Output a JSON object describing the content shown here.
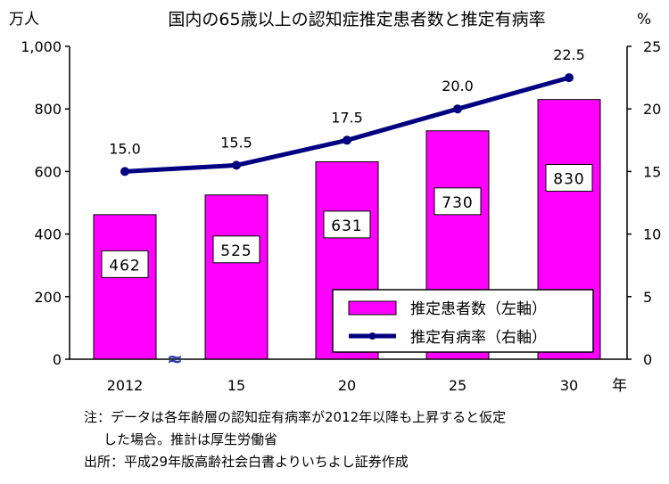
{
  "chart_data": {
    "type": "bar+line",
    "title": "国内の65歳以上の認知症推定患者数と推定有病率",
    "left_unit": "万人",
    "right_unit": "%",
    "x_unit": "年",
    "categories": [
      "2012",
      "15",
      "20",
      "25",
      "30"
    ],
    "left_axis": {
      "min": 0,
      "max": 1000,
      "ticks": [
        "0",
        "200",
        "400",
        "600",
        "800",
        "1,000"
      ]
    },
    "right_axis": {
      "min": 0,
      "max": 25,
      "ticks": [
        "0",
        "5",
        "10",
        "15",
        "20",
        "25"
      ]
    },
    "series": [
      {
        "name": "推定患者数（左軸）",
        "type": "bar",
        "axis": "left",
        "color": "#ff00ff",
        "values": [
          462,
          525,
          631,
          730,
          830
        ],
        "labels": [
          "462",
          "525",
          "631",
          "730",
          "830"
        ]
      },
      {
        "name": "推定有病率（右軸）",
        "type": "line",
        "axis": "right",
        "color": "#000080",
        "values": [
          15.0,
          15.5,
          17.5,
          20.0,
          22.5
        ],
        "labels": [
          "15.0",
          "15.5",
          "17.5",
          "20.0",
          "22.5"
        ]
      }
    ],
    "axis_break_marker": "≈"
  },
  "notes": {
    "line1": "注：データは各年齢層の認知症有病率が2012年以降も上昇すると仮定",
    "line2": "した場合。推計は厚生労働省",
    "source": "出所：平成29年版高齢社会白書よりいちよし証券作成"
  }
}
